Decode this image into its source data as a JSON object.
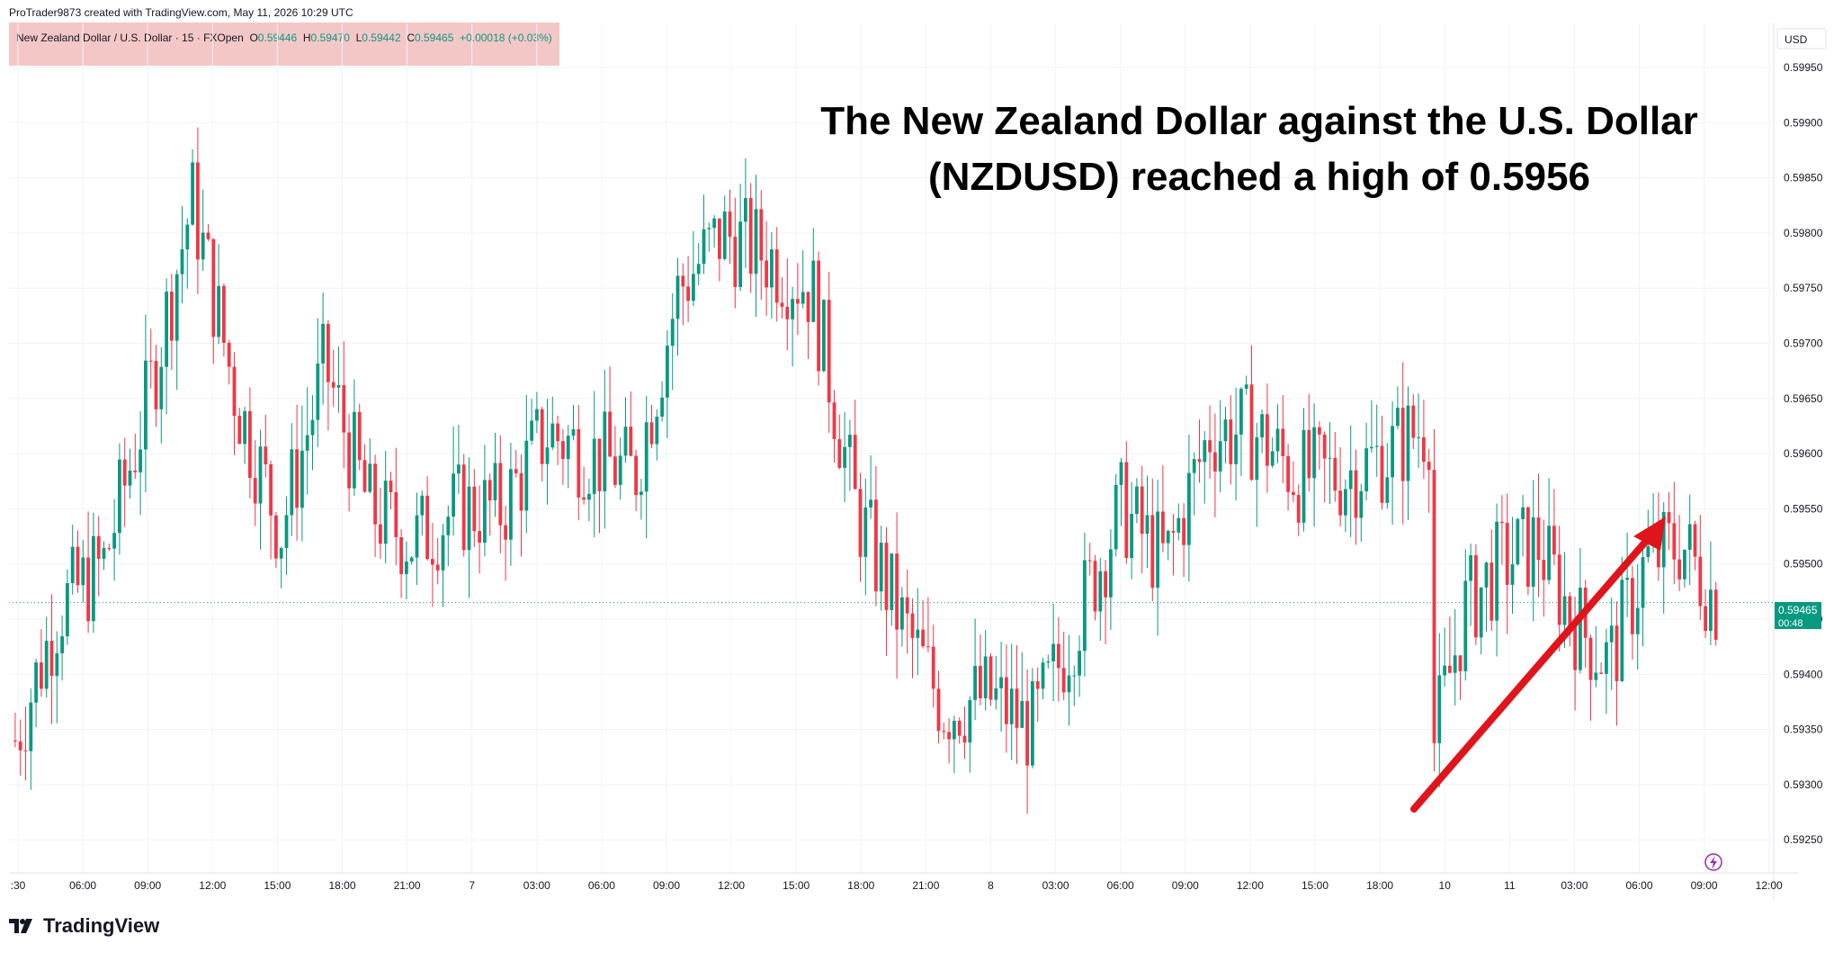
{
  "header": {
    "credit": "ProTrader9873 created with TradingView.com, May 11, 2026 10:29 UTC"
  },
  "legend": {
    "symbol": "New Zealand Dollar / U.S. Dollar · 15 · FXOpen",
    "o_key": "O",
    "o_val": "0.59446",
    "h_key": "H",
    "h_val": "0.59470",
    "l_key": "L",
    "l_val": "0.59442",
    "c_key": "C",
    "c_val": "0.59465",
    "change": "+0.00018 (+0.03%)"
  },
  "annotation": {
    "line1": "The New Zealand Dollar against the U.S. Dollar",
    "line2": "(NZDUSD) reached a high of 0.5956"
  },
  "price_axis": {
    "currency": "USD",
    "last_price": "0.59465",
    "countdown": "00:48"
  },
  "footer": {
    "brand": "TradingView"
  },
  "colors": {
    "up": "#089981",
    "down": "#f23645",
    "annotation_arrow": "#e0151b",
    "grid": "#f0f3fa",
    "legend_bg": "#f4c7c7"
  },
  "chart_data": {
    "type": "candlestick",
    "symbol": "NZDUSD",
    "interval": "15",
    "y_axis": {
      "min": 0.5922,
      "max": 0.5999,
      "ticks": [
        "0.59950",
        "0.59900",
        "0.59850",
        "0.59800",
        "0.59750",
        "0.59700",
        "0.59650",
        "0.59600",
        "0.59550",
        "0.59500",
        "0.59450",
        "0.59400",
        "0.59350",
        "0.59300",
        "0.59250"
      ]
    },
    "x_axis": {
      "tick_labels": [
        ":30",
        "06:00",
        "09:00",
        "12:00",
        "15:00",
        "18:00",
        "21:00",
        "7",
        "03:00",
        "06:00",
        "09:00",
        "12:00",
        "15:00",
        "18:00",
        "21:00",
        "8",
        "03:00",
        "06:00",
        "09:00",
        "12:00",
        "15:00",
        "18:00",
        "10",
        "11",
        "03:00",
        "06:00",
        "09:00",
        "12:00"
      ]
    },
    "last_price": 0.59465,
    "price_path": [
      [
        "03:30 May 6",
        0.5934
      ],
      [
        "06:00 May 6",
        0.5946
      ],
      [
        "08:30 May 6",
        0.595
      ],
      [
        "09:00 May 6",
        0.5965
      ],
      [
        "11:00 May 6",
        0.5983
      ],
      [
        "12:00 May 6",
        0.5965
      ],
      [
        "14:00 May 6",
        0.5953
      ],
      [
        "15:00 May 6",
        0.5968
      ],
      [
        "16:00 May 6",
        0.5955
      ],
      [
        "18:00 May 6",
        0.5952
      ],
      [
        "21:00 May 6",
        0.5955
      ],
      [
        "00:00 May 7",
        0.5955
      ],
      [
        "03:00 May 7",
        0.5962
      ],
      [
        "05:00 May 7",
        0.596
      ],
      [
        "06:00 May 7",
        0.5958
      ],
      [
        "08:00 May 7",
        0.5975
      ],
      [
        "11:00 May 7",
        0.598
      ],
      [
        "14:00 May 7",
        0.5978
      ],
      [
        "15:00 May 7",
        0.5975
      ],
      [
        "17:00 May 7",
        0.5955
      ],
      [
        "19:00 May 7",
        0.5945
      ],
      [
        "21:00 May 7",
        0.5937
      ],
      [
        "00:00 May 8",
        0.5938
      ],
      [
        "03:00 May 8",
        0.5935
      ],
      [
        "05:00 May 8",
        0.5945
      ],
      [
        "07:00 May 8",
        0.5955
      ],
      [
        "08:00 May 8",
        0.595
      ],
      [
        "09:00 May 8",
        0.5962
      ],
      [
        "11:00 May 8",
        0.5962
      ],
      [
        "13:00 May 8",
        0.5958
      ],
      [
        "15:00 May 8",
        0.5958
      ],
      [
        "18:00 May 8",
        0.596
      ],
      [
        "20:30 May 8",
        0.5963
      ],
      [
        "00:00 May 10",
        0.5932
      ],
      [
        "00:30 May 10",
        0.5946
      ],
      [
        "01:00 May 10",
        0.595
      ],
      [
        "03:00 May 10",
        0.5952
      ],
      [
        "05:00 May 10",
        0.5945
      ],
      [
        "06:00 May 10",
        0.5941
      ],
      [
        "08:00 May 10",
        0.595
      ],
      [
        "09:00 May 10",
        0.5952
      ],
      [
        "10:15 May 10",
        0.59465
      ]
    ],
    "annotated_high": 0.5956
  }
}
